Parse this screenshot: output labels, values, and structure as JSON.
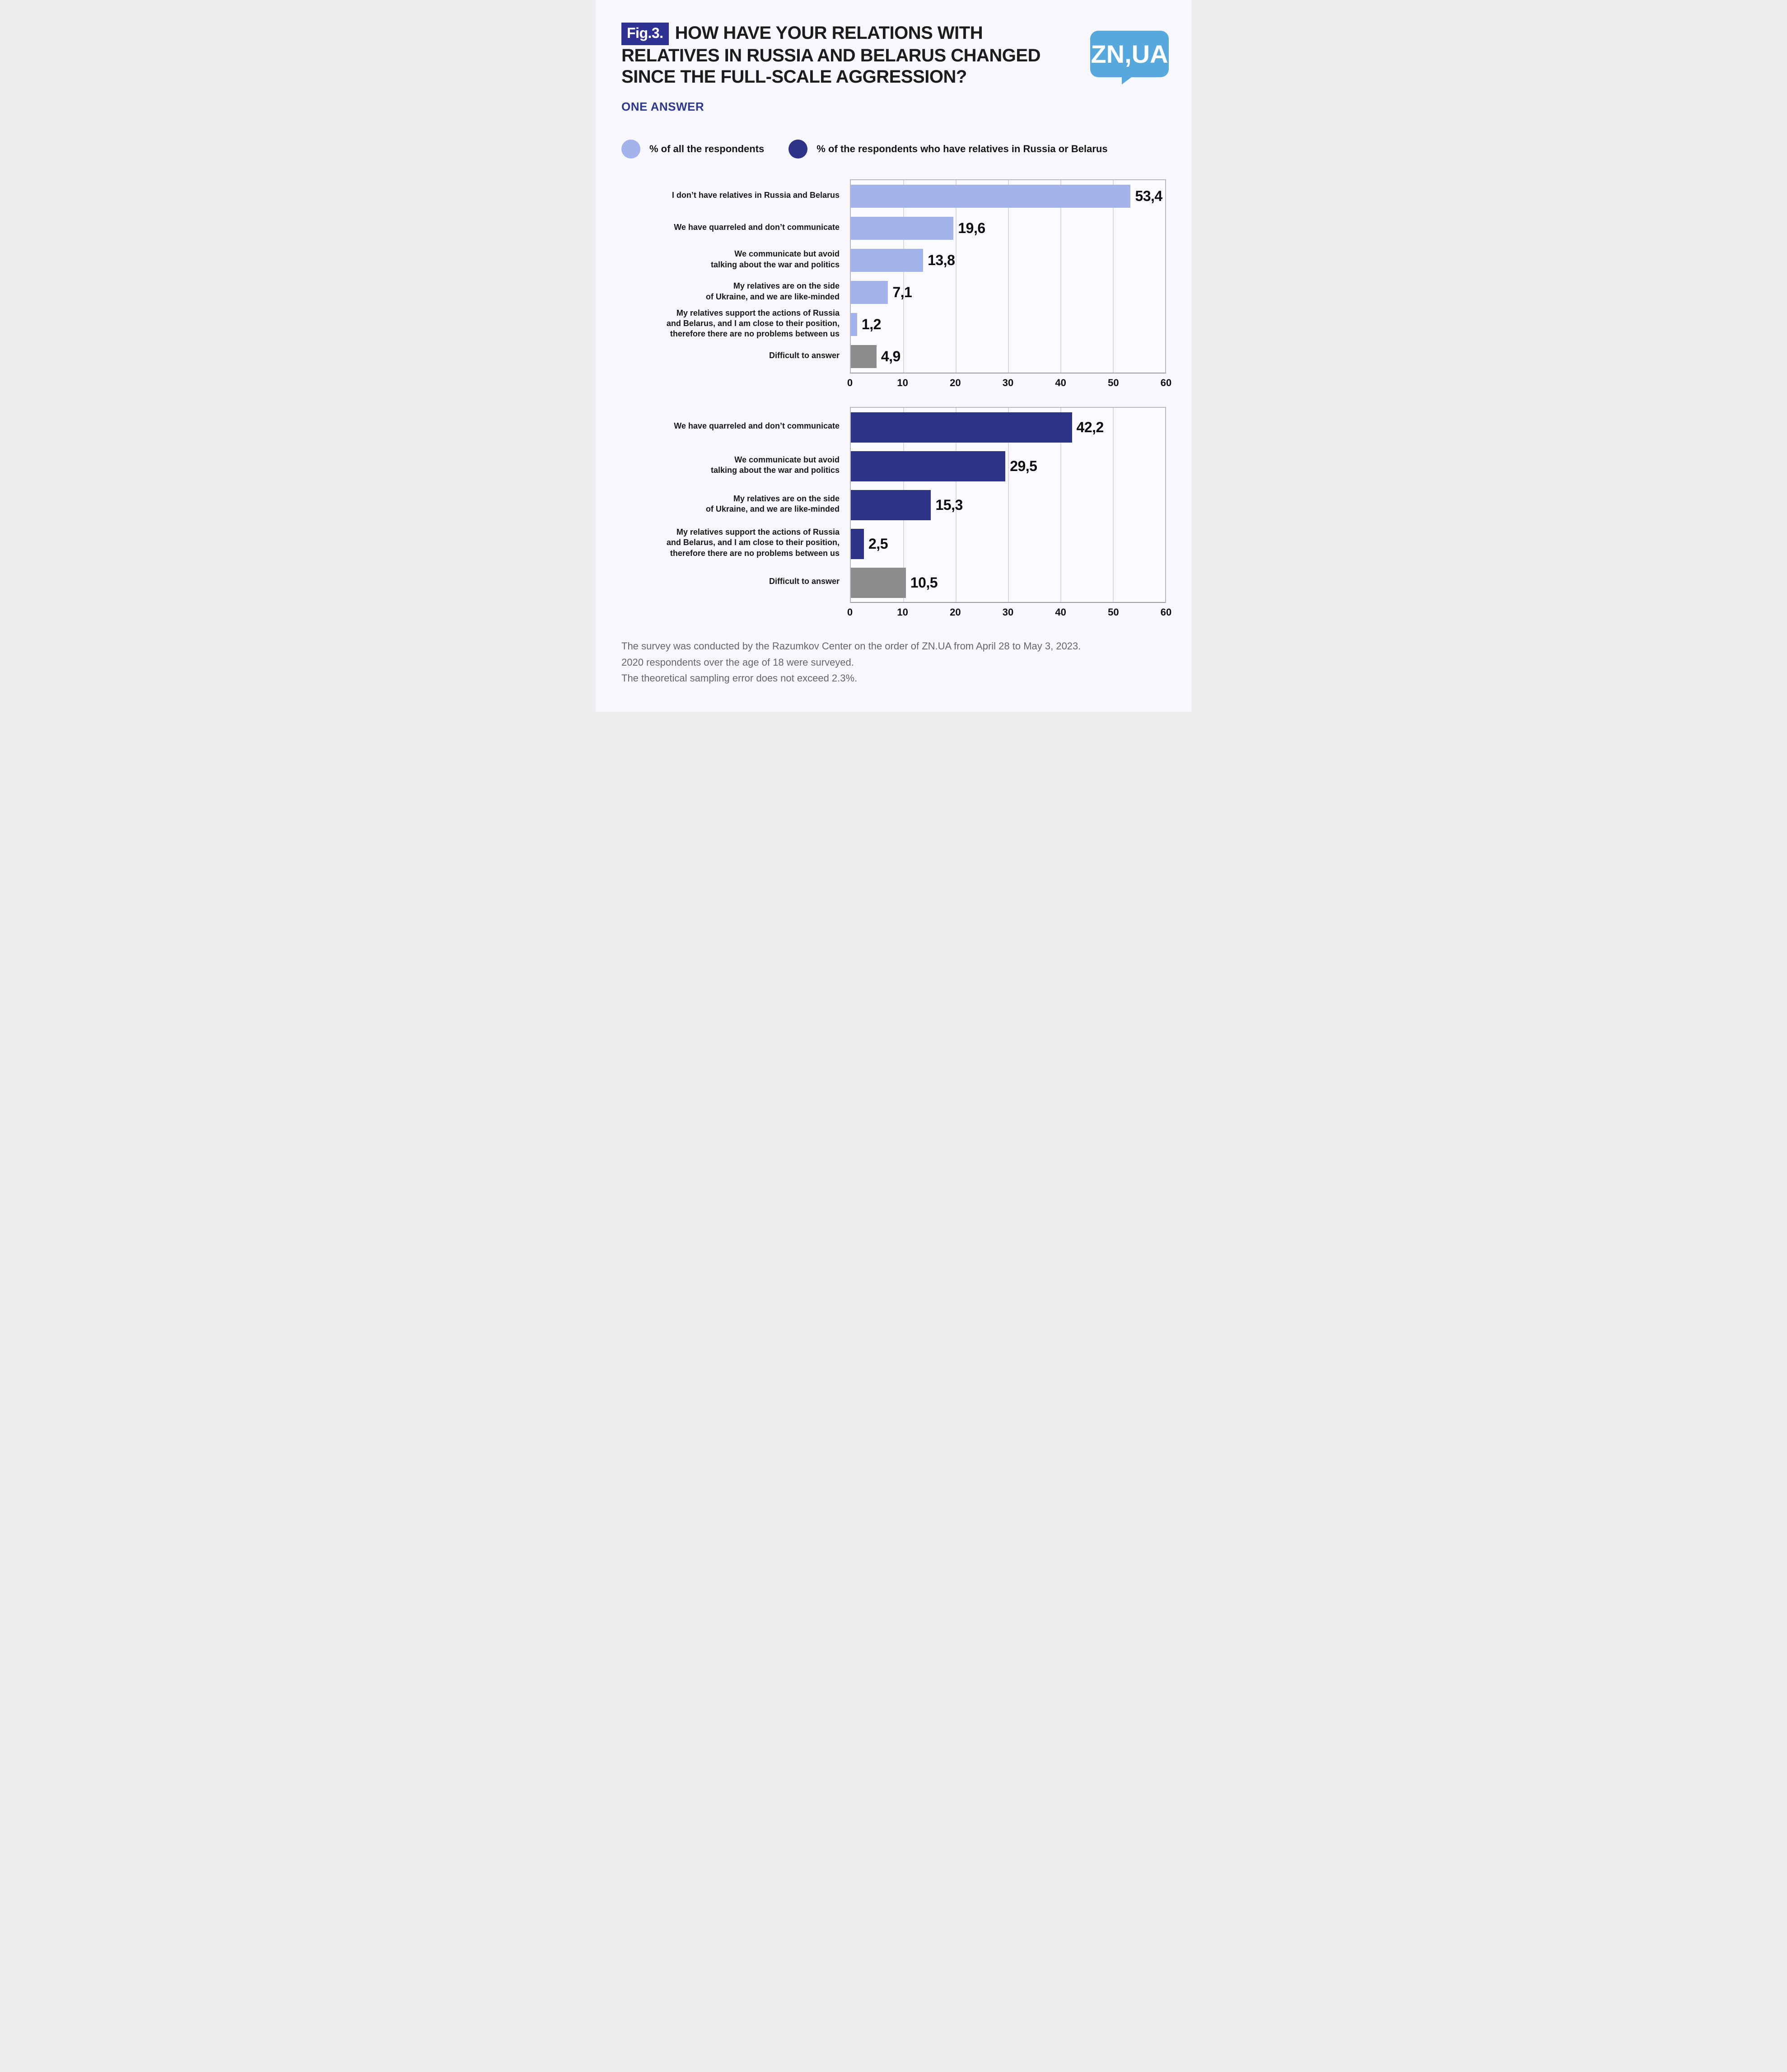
{
  "page": {
    "fig_label": "Fig.3.",
    "title_lines": [
      "HOW HAVE YOUR RELATIONS WITH",
      "RELATIVES IN RUSSIA AND BELARUS CHANGED",
      "SINCE THE FULL-SCALE AGGRESSION?"
    ],
    "subtitle": "ONE ANSWER",
    "logo_text": "ZN,UA",
    "footer_lines": [
      "The survey was conducted by the Razumkov Center on the order of ZN.UA from April 28 to May 3, 2023.",
      "2020 respondents over the age of 18 were surveyed.",
      "The theoretical sampling error does not exceed 2.3%."
    ]
  },
  "colors": {
    "light_blue": "#a3b4ec",
    "dark_blue": "#2d3386",
    "gray": "#8c8c8c",
    "fig_box": "#2f3293",
    "subtitle_blue": "#2d3890",
    "logo_blue": "#56a8dd"
  },
  "legend": {
    "items": [
      {
        "label": "% of all the respondents",
        "color": "light_blue"
      },
      {
        "label": "% of the respondents who have relatives in Russia or Belarus",
        "color": "dark_blue"
      }
    ]
  },
  "chart_data": [
    {
      "type": "bar",
      "orientation": "horizontal",
      "series_label": "% of all the respondents",
      "xlim": [
        0,
        60
      ],
      "x_ticks": [
        0,
        10,
        20,
        30,
        40,
        50,
        60
      ],
      "grid": true,
      "rows": [
        {
          "label": "I don’t have relatives in Russia and Belarus",
          "label_lines": [
            "I don’t have relatives in Russia and Belarus"
          ],
          "value": 53.4,
          "value_label": "53,4",
          "color": "light_blue"
        },
        {
          "label": "We have quarreled and don’t communicate",
          "label_lines": [
            "We have quarreled and don’t communicate"
          ],
          "value": 19.6,
          "value_label": "19,6",
          "color": "light_blue"
        },
        {
          "label": "We communicate but avoid talking about the war and politics",
          "label_lines": [
            "We communicate but avoid",
            "talking about the war and politics"
          ],
          "value": 13.8,
          "value_label": "13,8",
          "color": "light_blue"
        },
        {
          "label": "My relatives are on the side of Ukraine, and we are like-minded",
          "label_lines": [
            "My relatives are on the side",
            "of Ukraine, and we are like-minded"
          ],
          "value": 7.1,
          "value_label": "7,1",
          "color": "light_blue"
        },
        {
          "label": "My relatives support the actions of Russia and Belarus, and I am close to their position, therefore there are no problems between us",
          "label_lines": [
            "My relatives support the actions of Russia",
            "and Belarus, and I am close to their position,",
            "therefore there are no problems between us"
          ],
          "value": 1.2,
          "value_label": "1,2",
          "color": "light_blue"
        },
        {
          "label": "Difficult to answer",
          "label_lines": [
            "Difficult to answer"
          ],
          "value": 4.9,
          "value_label": "4,9",
          "color": "gray"
        }
      ]
    },
    {
      "type": "bar",
      "orientation": "horizontal",
      "series_label": "% of the respondents who have relatives in Russia or Belarus",
      "xlim": [
        0,
        60
      ],
      "x_ticks": [
        0,
        10,
        20,
        30,
        40,
        50,
        60
      ],
      "grid": true,
      "rows": [
        {
          "label": "We have quarreled and don’t communicate",
          "label_lines": [
            "We have quarreled and don’t communicate"
          ],
          "value": 42.2,
          "value_label": "42,2",
          "color": "dark_blue"
        },
        {
          "label": "We communicate but avoid talking about the war and politics",
          "label_lines": [
            "We communicate but avoid",
            "talking about the war and politics"
          ],
          "value": 29.5,
          "value_label": "29,5",
          "color": "dark_blue"
        },
        {
          "label": "My relatives are on the side of Ukraine, and we are like-minded",
          "label_lines": [
            "My relatives are on the side",
            "of Ukraine, and we are like-minded"
          ],
          "value": 15.3,
          "value_label": "15,3",
          "color": "dark_blue"
        },
        {
          "label": "My relatives support the actions of Russia and Belarus, and I am close to their position, therefore there are no problems between us",
          "label_lines": [
            "My relatives support the actions of Russia",
            "and Belarus, and I am close to their position,",
            "therefore there are no problems between us"
          ],
          "value": 2.5,
          "value_label": "2,5",
          "color": "dark_blue"
        },
        {
          "label": "Difficult to answer",
          "label_lines": [
            "Difficult to answer"
          ],
          "value": 10.5,
          "value_label": "10,5",
          "color": "gray"
        }
      ]
    }
  ]
}
